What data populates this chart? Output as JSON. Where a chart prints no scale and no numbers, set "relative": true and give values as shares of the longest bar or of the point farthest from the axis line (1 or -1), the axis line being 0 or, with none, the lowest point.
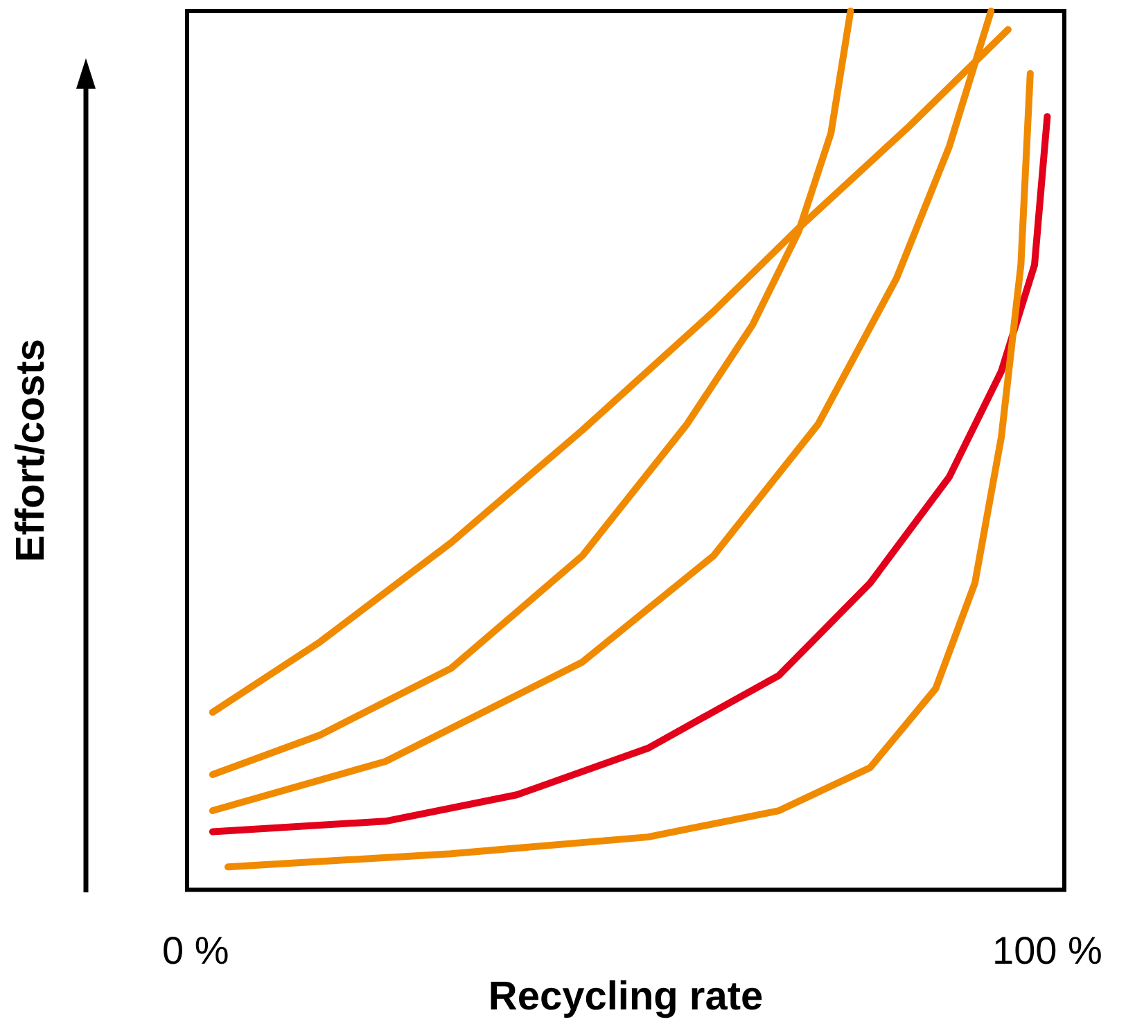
{
  "chart_data": {
    "type": "line",
    "xlabel": "Recycling rate",
    "ylabel": "Effort/costs",
    "relative": true,
    "xlim": [
      -1,
      102
    ],
    "xticks": [
      {
        "value": 0,
        "label": "0 %"
      },
      {
        "value": 100,
        "label": "100 %"
      }
    ],
    "grid": false,
    "marker": "none",
    "line_style": "solid",
    "series": [
      {
        "color": "#f08a00",
        "x": [
          2,
          14.6,
          30,
          45.4,
          60.8,
          70.8,
          83.8,
          95.4
        ],
        "values": [
          0.202,
          0.282,
          0.395,
          0.523,
          0.658,
          0.753,
          0.869,
          0.979
        ]
      },
      {
        "color": "#f08a00",
        "x": [
          2,
          14.6,
          30,
          45.4,
          57.7,
          65.4,
          70.8,
          74.6,
          76.9
        ],
        "values": [
          0.131,
          0.176,
          0.252,
          0.38,
          0.53,
          0.643,
          0.749,
          0.861,
          1.0
        ]
      },
      {
        "color": "#f08a00",
        "x": [
          2,
          22.3,
          45.4,
          60.8,
          73.1,
          82.3,
          88.5,
          93.4
        ],
        "values": [
          0.09,
          0.146,
          0.259,
          0.38,
          0.53,
          0.696,
          0.846,
          1.0
        ]
      },
      {
        "color": "#e2001a",
        "x": [
          2,
          22.3,
          37.7,
          53.1,
          68.5,
          79.2,
          88.5,
          94.6,
          98.5,
          100
        ],
        "values": [
          0.066,
          0.078,
          0.108,
          0.161,
          0.244,
          0.349,
          0.47,
          0.59,
          0.711,
          0.88
        ]
      },
      {
        "color": "#f08a00",
        "x": [
          3.8,
          30,
          53.1,
          68.5,
          79.2,
          86.9,
          91.5,
          94.6,
          96.9,
          98
        ],
        "values": [
          0.026,
          0.041,
          0.06,
          0.09,
          0.139,
          0.229,
          0.349,
          0.515,
          0.711,
          0.929
        ]
      }
    ]
  }
}
